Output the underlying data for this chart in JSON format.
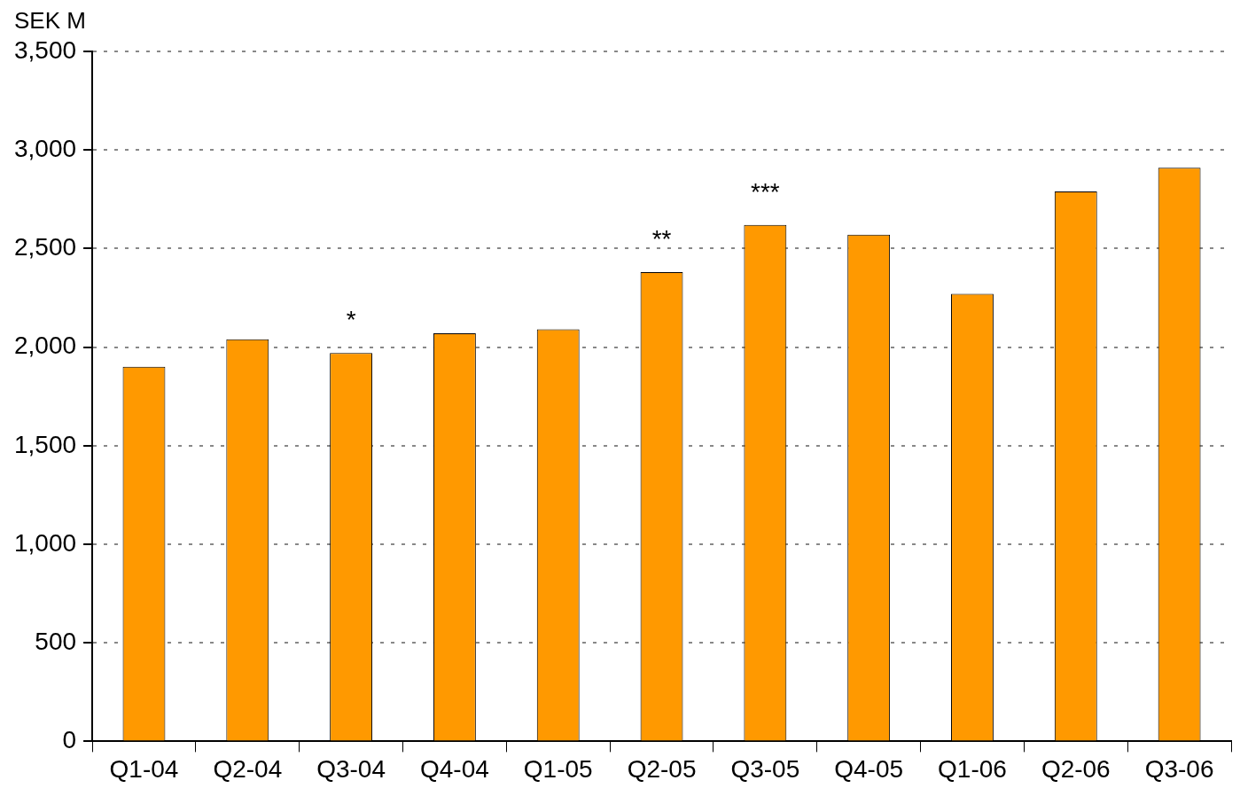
{
  "chart_data": {
    "type": "bar",
    "ylabel": "SEK M",
    "categories": [
      "Q1-04",
      "Q2-04",
      "Q3-04",
      "Q4-04",
      "Q1-05",
      "Q2-05",
      "Q3-05",
      "Q4-05",
      "Q1-06",
      "Q2-06",
      "Q3-06"
    ],
    "values": [
      1900,
      2040,
      1970,
      2070,
      2090,
      2380,
      2620,
      2570,
      2270,
      2790,
      2910
    ],
    "color": "#ff9900",
    "ylim": [
      0,
      3500
    ],
    "yticks": [
      0,
      500,
      {
        "value": 1000,
        "label": "1,000"
      },
      {
        "value": 1500,
        "label": "1,500"
      },
      {
        "value": 2000,
        "label": "2,000"
      },
      {
        "value": 2500,
        "label": "2,500"
      },
      {
        "value": 3000,
        "label": "3,000"
      },
      {
        "value": 3500,
        "label": "3,500"
      }
    ],
    "grid": "y",
    "legend": false,
    "annotations": [
      {
        "text": "*",
        "x": "Q3-04",
        "y": 1970
      },
      {
        "text": "**",
        "x": "Q2-05",
        "y": 2380
      },
      {
        "text": "***",
        "x": "Q3-05",
        "y": 2620
      }
    ]
  }
}
